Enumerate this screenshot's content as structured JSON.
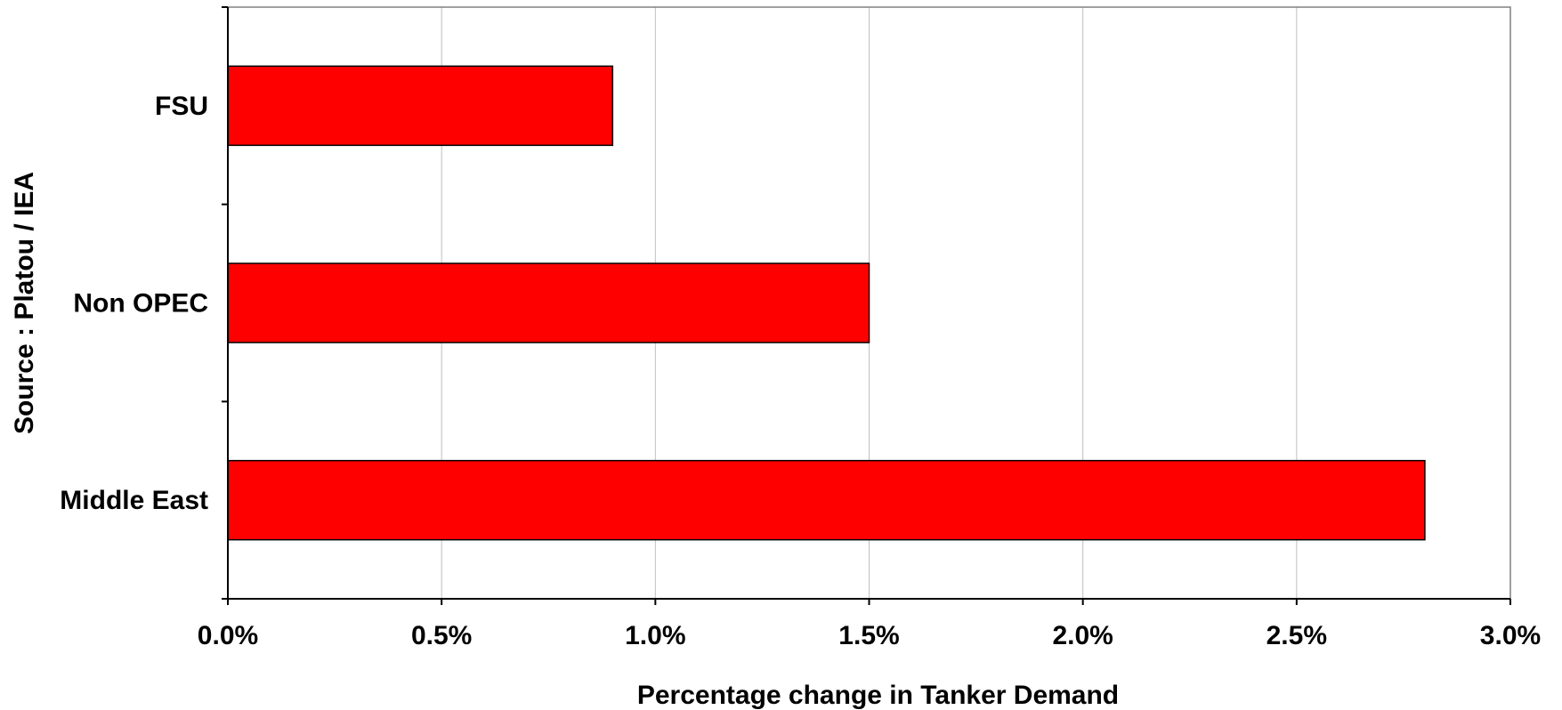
{
  "chart_data": {
    "type": "bar",
    "orientation": "horizontal",
    "categories": [
      "FSU",
      "Non OPEC",
      "Middle East"
    ],
    "values": [
      0.009,
      0.015,
      0.028
    ],
    "xlabel": "Percentage change in Tanker Demand",
    "ylabel": "Source : Platou / IEA",
    "xlim": [
      0,
      0.03
    ],
    "xticks": [
      0,
      0.005,
      0.01,
      0.015,
      0.02,
      0.025,
      0.03
    ],
    "xtick_labels": [
      "0.0%",
      "0.5%",
      "1.0%",
      "1.5%",
      "2.0%",
      "2.5%",
      "3.0%"
    ],
    "grid": "vertical",
    "bar_color": "#ff0000",
    "bar_edge_color": "#000000",
    "gridline_color": "#c0c0c0",
    "plot_border_color": "#808080"
  }
}
